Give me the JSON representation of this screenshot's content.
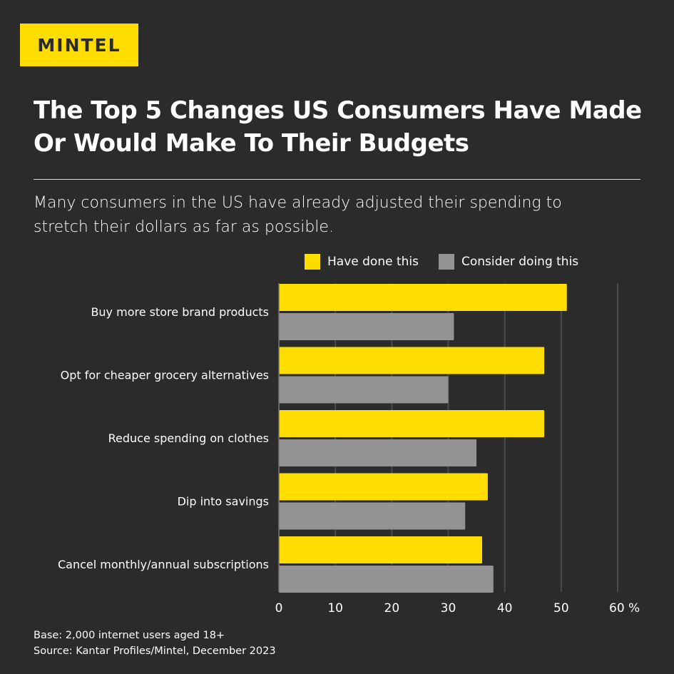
{
  "logo": "MINTEL",
  "title_line1": "The Top 5 Changes US Consumers Have Made",
  "title_line2": "Or Would Make To Their Budgets",
  "subtitle_line1": "Many consumers in the US have already adjusted their spending to",
  "subtitle_line2": "stretch their dollars as far as possible.",
  "footer": {
    "base": "Base: 2,000 internet users aged 18+",
    "source": "Source: Kantar Profiles/Mintel, December 2023"
  },
  "chart_data": {
    "type": "bar",
    "orientation": "horizontal",
    "categories": [
      "Buy more store brand products",
      "Opt for cheaper grocery alternatives",
      "Reduce spending on clothes",
      "Dip into savings",
      "Cancel monthly/annual subscriptions"
    ],
    "series": [
      {
        "name": "Have done this",
        "color": "#ffdd00",
        "values": [
          51,
          47,
          47,
          37,
          36
        ]
      },
      {
        "name": "Consider doing this",
        "color": "#939393",
        "values": [
          31,
          30,
          35,
          33,
          38
        ]
      }
    ],
    "xlim": [
      0,
      60
    ],
    "xticks": [
      "0",
      "10",
      "20",
      "30",
      "40",
      "50",
      "60 %"
    ],
    "xtick_values": [
      0,
      10,
      20,
      30,
      40,
      50,
      60
    ],
    "grid": true,
    "legend": "top"
  }
}
